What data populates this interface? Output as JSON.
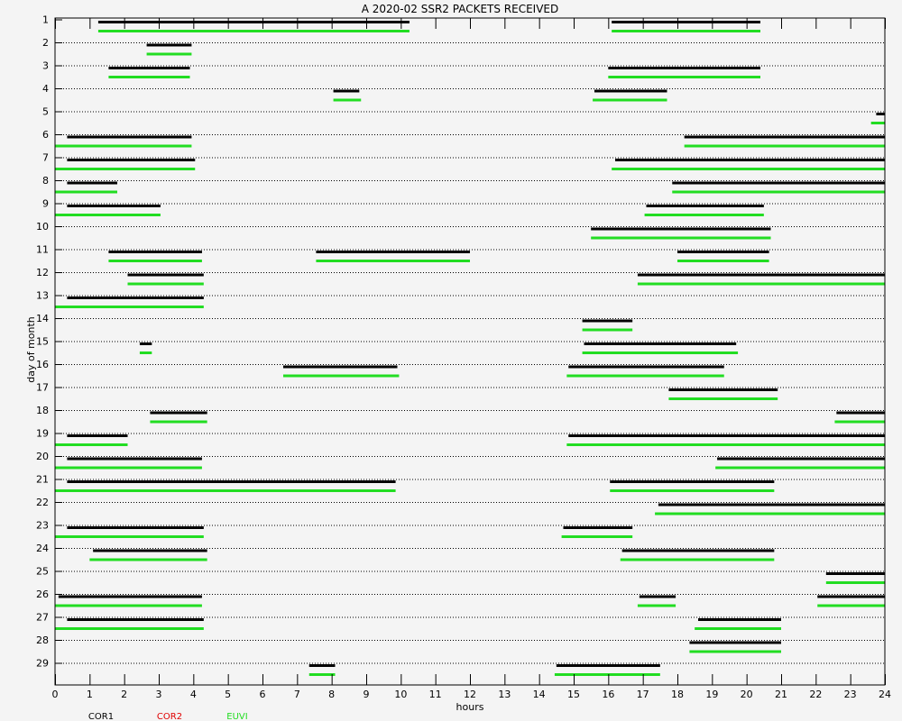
{
  "chart_data": {
    "type": "timeline",
    "title": "A  2020-02 SSR2 PACKETS RECEIVED",
    "xlabel": "hours",
    "ylabel": "day of month",
    "xlim": [
      0,
      24
    ],
    "x_ticks": [
      "0",
      "1",
      "2",
      "3",
      "4",
      "5",
      "6",
      "7",
      "8",
      "9",
      "10",
      "11",
      "12",
      "13",
      "14",
      "15",
      "16",
      "17",
      "18",
      "19",
      "20",
      "21",
      "22",
      "23",
      "24"
    ],
    "days": [
      "1",
      "2",
      "3",
      "4",
      "5",
      "6",
      "7",
      "8",
      "9",
      "10",
      "11",
      "12",
      "13",
      "14",
      "15",
      "16",
      "17",
      "18",
      "19",
      "20",
      "21",
      "22",
      "23",
      "24",
      "25",
      "26",
      "27",
      "28",
      "29"
    ],
    "grid": "horizontal dotted",
    "series": [
      {
        "name": "COR1",
        "color": "#000000"
      },
      {
        "name": "COR2",
        "color": "#e00000"
      },
      {
        "name": "EUVI",
        "color": "#22dd22"
      }
    ],
    "intervals": [
      {
        "day": 1,
        "cor1": [
          [
            1.25,
            10.25
          ],
          [
            16.1,
            20.4
          ]
        ],
        "euvi": [
          [
            1.25,
            10.25
          ],
          [
            16.1,
            20.4
          ]
        ]
      },
      {
        "day": 2,
        "cor1": [
          [
            2.65,
            3.95
          ]
        ],
        "euvi": [
          [
            2.65,
            3.95
          ]
        ]
      },
      {
        "day": 3,
        "cor1": [
          [
            1.55,
            3.9
          ],
          [
            16.0,
            20.4
          ]
        ],
        "euvi": [
          [
            1.55,
            3.9
          ],
          [
            16.0,
            20.4
          ]
        ]
      },
      {
        "day": 4,
        "cor1": [
          [
            8.05,
            8.8
          ],
          [
            15.6,
            17.7
          ]
        ],
        "euvi": [
          [
            8.05,
            8.85
          ],
          [
            15.55,
            17.7
          ]
        ]
      },
      {
        "day": 5,
        "cor1": [
          [
            23.75,
            24.0
          ]
        ],
        "euvi": [
          [
            23.6,
            24.0
          ]
        ]
      },
      {
        "day": 6,
        "cor1": [
          [
            0.35,
            3.95
          ],
          [
            18.2,
            24.0
          ]
        ],
        "euvi": [
          [
            0.0,
            3.95
          ],
          [
            18.2,
            24.0
          ]
        ]
      },
      {
        "day": 7,
        "cor1": [
          [
            0.35,
            4.05
          ],
          [
            16.2,
            24.0
          ]
        ],
        "euvi": [
          [
            0.0,
            4.05
          ],
          [
            16.1,
            24.0
          ]
        ]
      },
      {
        "day": 8,
        "cor1": [
          [
            0.35,
            1.8
          ],
          [
            17.85,
            24.0
          ]
        ],
        "euvi": [
          [
            0.0,
            1.8
          ],
          [
            17.85,
            24.0
          ]
        ]
      },
      {
        "day": 9,
        "cor1": [
          [
            0.35,
            3.05
          ],
          [
            17.1,
            20.5
          ]
        ],
        "euvi": [
          [
            0.0,
            3.05
          ],
          [
            17.05,
            20.5
          ]
        ]
      },
      {
        "day": 10,
        "cor1": [
          [
            15.5,
            20.7
          ]
        ],
        "euvi": [
          [
            15.5,
            20.7
          ]
        ]
      },
      {
        "day": 11,
        "cor1": [
          [
            1.55,
            4.25
          ],
          [
            7.55,
            12.0
          ],
          [
            18.0,
            20.65
          ]
        ],
        "euvi": [
          [
            1.55,
            4.25
          ],
          [
            7.55,
            12.0
          ],
          [
            18.0,
            20.65
          ]
        ]
      },
      {
        "day": 12,
        "cor1": [
          [
            2.1,
            4.3
          ],
          [
            16.85,
            24.0
          ]
        ],
        "euvi": [
          [
            2.1,
            4.3
          ],
          [
            16.85,
            24.0
          ]
        ]
      },
      {
        "day": 13,
        "cor1": [
          [
            0.35,
            4.3
          ]
        ],
        "euvi": [
          [
            0.0,
            4.3
          ]
        ]
      },
      {
        "day": 14,
        "cor1": [
          [
            15.25,
            16.7
          ]
        ],
        "euvi": [
          [
            15.25,
            16.7
          ]
        ]
      },
      {
        "day": 15,
        "cor1": [
          [
            2.45,
            2.8
          ],
          [
            15.3,
            19.7
          ]
        ],
        "euvi": [
          [
            2.45,
            2.8
          ],
          [
            15.25,
            19.75
          ]
        ]
      },
      {
        "day": 16,
        "cor1": [
          [
            6.6,
            9.9
          ],
          [
            14.85,
            19.35
          ]
        ],
        "euvi": [
          [
            6.6,
            9.95
          ],
          [
            14.8,
            19.35
          ]
        ]
      },
      {
        "day": 17,
        "cor1": [
          [
            17.75,
            20.9
          ]
        ],
        "euvi": [
          [
            17.75,
            20.9
          ]
        ]
      },
      {
        "day": 18,
        "cor1": [
          [
            2.75,
            4.4
          ],
          [
            22.6,
            24.0
          ]
        ],
        "euvi": [
          [
            2.75,
            4.4
          ],
          [
            22.55,
            24.0
          ]
        ]
      },
      {
        "day": 19,
        "cor1": [
          [
            0.35,
            2.1
          ],
          [
            14.85,
            24.0
          ]
        ],
        "euvi": [
          [
            0.0,
            2.1
          ],
          [
            14.8,
            24.0
          ]
        ]
      },
      {
        "day": 20,
        "cor1": [
          [
            0.35,
            4.25
          ],
          [
            19.15,
            24.0
          ]
        ],
        "euvi": [
          [
            0.0,
            4.25
          ],
          [
            19.1,
            24.0
          ]
        ]
      },
      {
        "day": 21,
        "cor1": [
          [
            0.35,
            9.85
          ],
          [
            16.05,
            20.8
          ]
        ],
        "euvi": [
          [
            0.0,
            9.85
          ],
          [
            16.05,
            20.8
          ]
        ]
      },
      {
        "day": 22,
        "cor1": [
          [
            17.45,
            24.0
          ]
        ],
        "euvi": [
          [
            17.35,
            24.0
          ]
        ]
      },
      {
        "day": 23,
        "cor1": [
          [
            0.35,
            4.3
          ],
          [
            14.7,
            16.7
          ]
        ],
        "euvi": [
          [
            0.0,
            4.3
          ],
          [
            14.65,
            16.7
          ]
        ]
      },
      {
        "day": 24,
        "cor1": [
          [
            1.1,
            4.4
          ],
          [
            16.4,
            20.8
          ]
        ],
        "euvi": [
          [
            1.0,
            4.4
          ],
          [
            16.35,
            20.8
          ]
        ]
      },
      {
        "day": 25,
        "cor1": [
          [
            22.3,
            24.0
          ]
        ],
        "euvi": [
          [
            22.3,
            24.0
          ]
        ]
      },
      {
        "day": 26,
        "cor1": [
          [
            0.1,
            4.25
          ],
          [
            16.9,
            17.95
          ],
          [
            22.05,
            24.0
          ]
        ],
        "euvi": [
          [
            0.0,
            4.25
          ],
          [
            16.85,
            17.95
          ],
          [
            22.05,
            24.0
          ]
        ]
      },
      {
        "day": 27,
        "cor1": [
          [
            0.35,
            4.3
          ],
          [
            18.6,
            21.0
          ]
        ],
        "euvi": [
          [
            0.0,
            4.3
          ],
          [
            18.5,
            21.0
          ]
        ]
      },
      {
        "day": 28,
        "cor1": [
          [
            18.35,
            21.0
          ]
        ],
        "euvi": [
          [
            18.35,
            21.0
          ]
        ]
      },
      {
        "day": 29,
        "cor1": [
          [
            7.35,
            8.1
          ],
          [
            14.5,
            17.5
          ]
        ],
        "euvi": [
          [
            7.35,
            8.1
          ],
          [
            14.45,
            17.5
          ]
        ]
      }
    ]
  }
}
